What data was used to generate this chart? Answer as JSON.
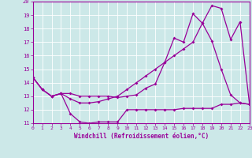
{
  "xlabel": "Windchill (Refroidissement éolien,°C)",
  "background_color": "#cce8e8",
  "line_color": "#990099",
  "grid_color": "#ffffff",
  "xmin": 0,
  "xmax": 23,
  "ymin": 11,
  "ymax": 20,
  "line1_x": [
    0,
    1,
    2,
    3,
    4,
    5,
    6,
    7,
    8,
    9,
    10,
    11,
    12,
    13,
    14,
    15,
    16,
    17,
    18,
    19,
    20,
    21,
    22,
    23
  ],
  "line1_y": [
    14.4,
    13.5,
    13.0,
    13.2,
    13.2,
    13.0,
    13.0,
    13.0,
    13.0,
    12.9,
    13.0,
    13.1,
    13.6,
    13.9,
    15.5,
    17.3,
    17.0,
    19.1,
    18.4,
    17.1,
    15.0,
    13.1,
    12.5,
    12.4
  ],
  "line2_x": [
    0,
    1,
    2,
    3,
    4,
    5,
    6,
    7,
    8,
    9,
    10,
    11,
    12,
    13,
    14,
    15,
    16,
    17,
    18,
    19,
    20,
    21,
    22,
    23
  ],
  "line2_y": [
    14.4,
    13.5,
    13.0,
    13.2,
    11.7,
    11.1,
    11.0,
    11.1,
    11.1,
    11.1,
    12.0,
    12.0,
    12.0,
    12.0,
    12.0,
    12.0,
    12.1,
    12.1,
    12.1,
    12.1,
    12.4,
    12.4,
    12.5,
    12.4
  ],
  "line3_x": [
    0,
    1,
    2,
    3,
    4,
    5,
    6,
    7,
    8,
    9,
    10,
    11,
    12,
    13,
    14,
    15,
    16,
    17,
    18,
    19,
    20,
    21,
    22,
    23
  ],
  "line3_y": [
    14.4,
    13.5,
    13.0,
    13.2,
    12.8,
    12.5,
    12.5,
    12.6,
    12.8,
    13.0,
    13.5,
    14.0,
    14.5,
    15.0,
    15.5,
    16.0,
    16.5,
    17.0,
    18.4,
    19.7,
    19.5,
    17.2,
    18.5,
    12.4
  ]
}
